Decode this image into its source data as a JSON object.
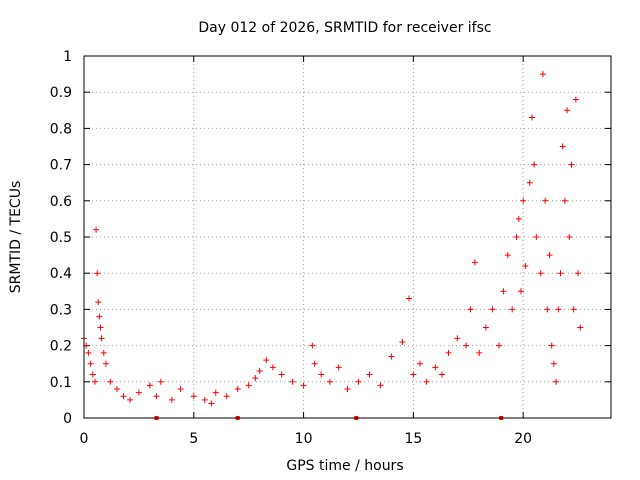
{
  "chart_data": {
    "type": "scatter",
    "title": "Day 012 of 2026, SRMTID for receiver ifsc",
    "xlabel": "GPS time / hours",
    "ylabel": "SRMTID / TECUs",
    "xlim": [
      0,
      24
    ],
    "ylim": [
      0,
      1
    ],
    "xticks": [
      0,
      5,
      10,
      15,
      20
    ],
    "yticks": [
      0,
      0.1,
      0.2,
      0.3,
      0.4,
      0.5,
      0.6,
      0.7,
      0.8,
      0.9,
      1
    ],
    "xtick_labels": [
      "0",
      "5",
      "10",
      "15",
      "20"
    ],
    "ytick_labels": [
      "0",
      "0.1",
      "0.2",
      "0.3",
      "0.4",
      "0.5",
      "0.6",
      "0.7",
      "0.8",
      "0.9",
      "1"
    ],
    "grid": true,
    "marker": "+",
    "color": "#ff0000",
    "series": [
      {
        "name": "SRMTID",
        "x": [
          0.0,
          0.1,
          0.2,
          0.3,
          0.4,
          0.5,
          0.55,
          0.6,
          0.65,
          0.7,
          0.75,
          0.8,
          0.9,
          1.0,
          1.2,
          1.5,
          1.8,
          2.1,
          2.5,
          3.0,
          3.3,
          3.5,
          4.0,
          4.4,
          5.0,
          5.5,
          5.8,
          6.0,
          6.5,
          7.0,
          7.5,
          7.8,
          8.0,
          8.3,
          8.6,
          9.0,
          9.5,
          10.0,
          10.4,
          10.5,
          10.8,
          11.2,
          11.6,
          12.0,
          12.5,
          13.0,
          13.5,
          14.0,
          14.5,
          14.8,
          15.0,
          15.3,
          15.6,
          16.0,
          16.3,
          16.6,
          17.0,
          17.4,
          17.6,
          17.8,
          18.0,
          18.3,
          18.6,
          18.9,
          19.1,
          19.3,
          19.5,
          19.7,
          19.8,
          19.9,
          20.0,
          20.1,
          20.3,
          20.4,
          20.5,
          20.6,
          20.8,
          20.9,
          21.0,
          21.1,
          21.2,
          21.3,
          21.4,
          21.5,
          21.6,
          21.7,
          21.8,
          21.9,
          22.0,
          22.1,
          22.2,
          22.3,
          22.4,
          22.5,
          22.6
        ],
        "values": [
          0.22,
          0.2,
          0.18,
          0.15,
          0.12,
          0.1,
          0.52,
          0.4,
          0.32,
          0.28,
          0.25,
          0.22,
          0.18,
          0.15,
          0.1,
          0.08,
          0.06,
          0.05,
          0.07,
          0.09,
          0.06,
          0.1,
          0.05,
          0.08,
          0.06,
          0.05,
          0.04,
          0.07,
          0.06,
          0.08,
          0.09,
          0.11,
          0.13,
          0.16,
          0.14,
          0.12,
          0.1,
          0.09,
          0.2,
          0.15,
          0.12,
          0.1,
          0.14,
          0.08,
          0.1,
          0.12,
          0.09,
          0.17,
          0.21,
          0.33,
          0.12,
          0.15,
          0.1,
          0.14,
          0.12,
          0.18,
          0.22,
          0.2,
          0.3,
          0.43,
          0.18,
          0.25,
          0.3,
          0.2,
          0.35,
          0.45,
          0.3,
          0.5,
          0.55,
          0.35,
          0.6,
          0.42,
          0.65,
          0.83,
          0.7,
          0.5,
          0.4,
          0.95,
          0.6,
          0.3,
          0.45,
          0.2,
          0.15,
          0.1,
          0.3,
          0.4,
          0.75,
          0.6,
          0.85,
          0.5,
          0.7,
          0.3,
          0.88,
          0.4,
          0.25
        ]
      }
    ],
    "baseline_markers_x": [
      3.3,
      7,
      12.4,
      19
    ]
  }
}
